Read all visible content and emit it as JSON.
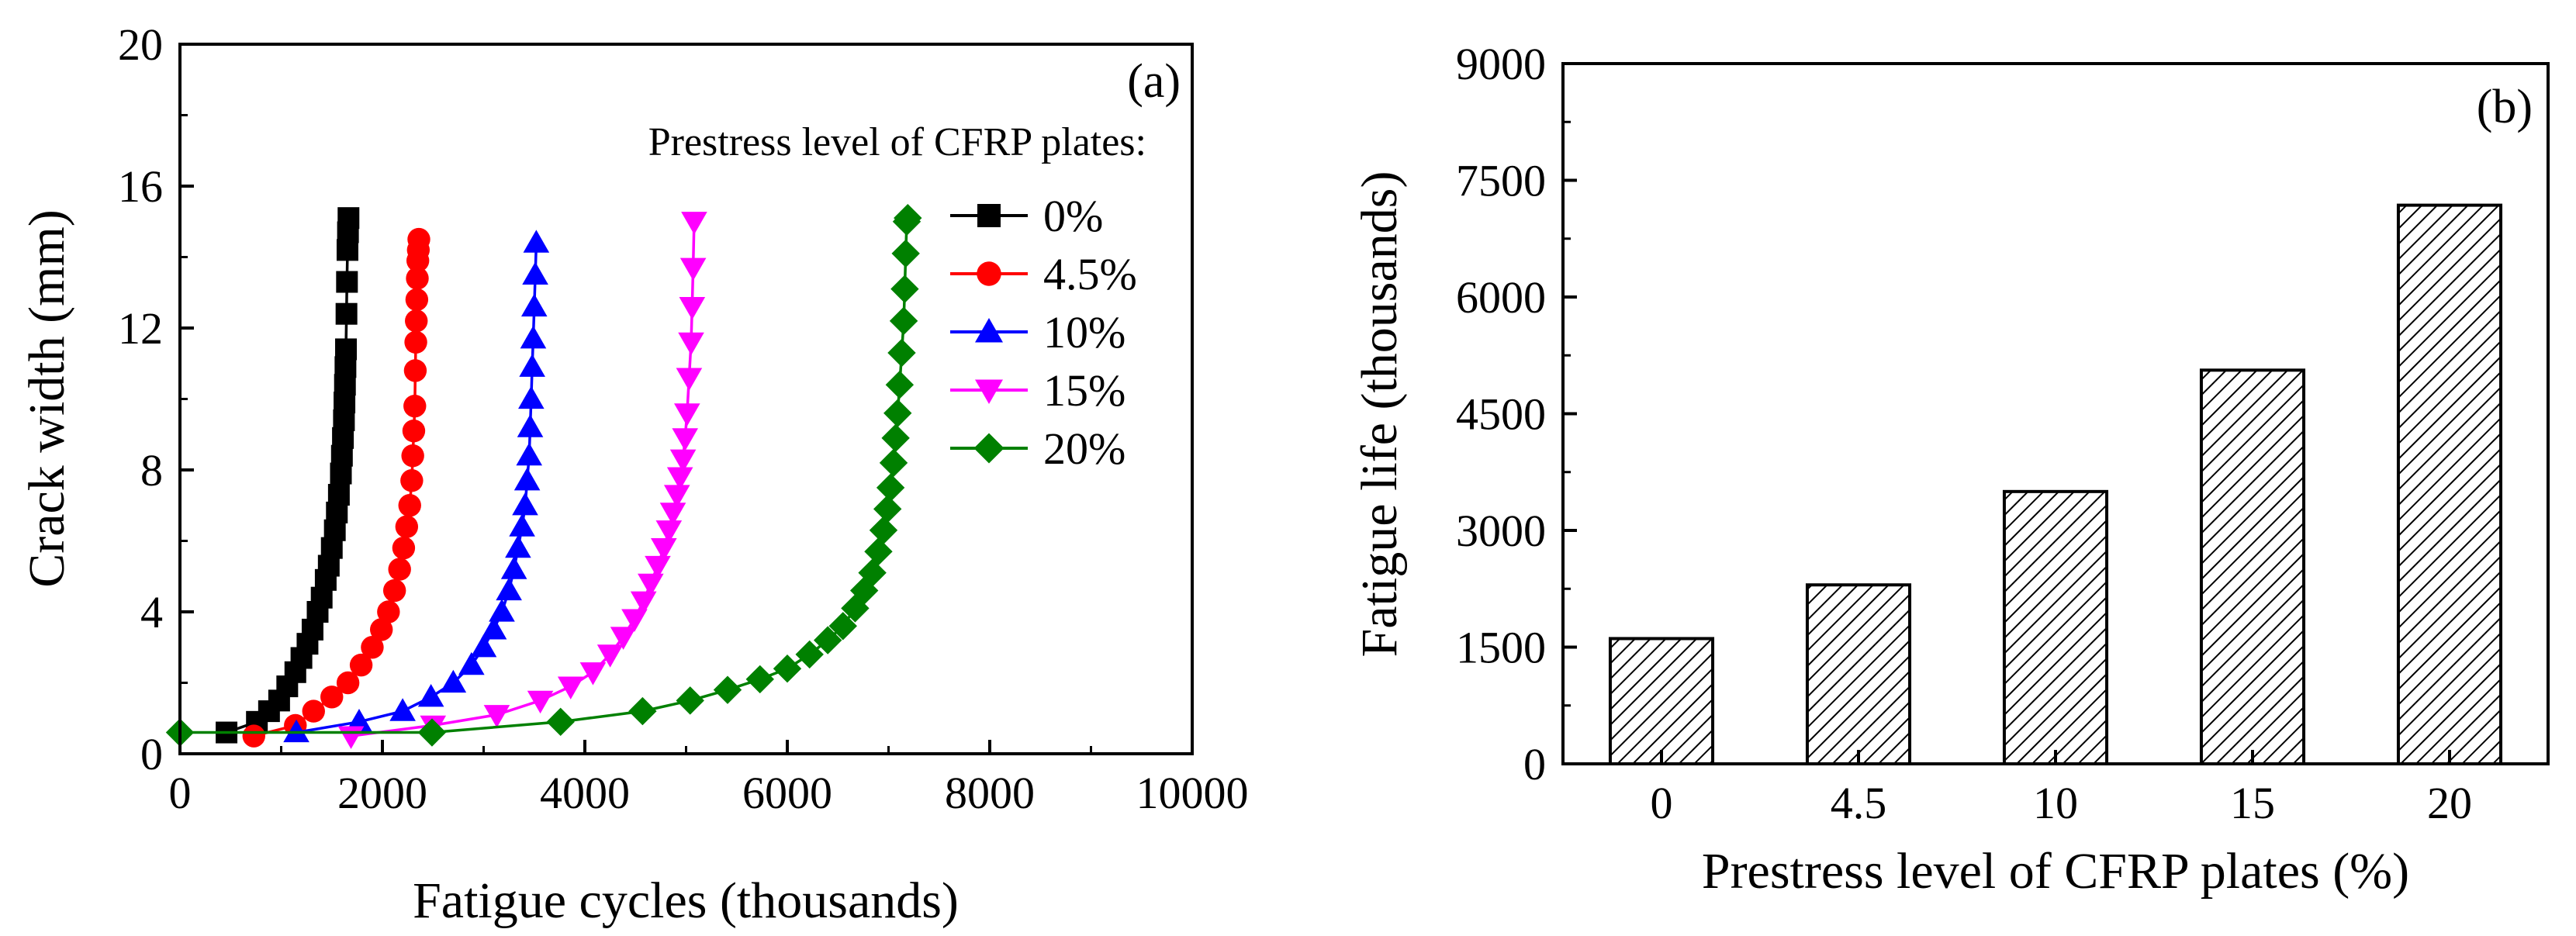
{
  "chart_data": [
    {
      "type": "line",
      "panel_label": "(a)",
      "xlabel": "Fatigue cycles (thousands)",
      "ylabel": "Crack width (mm)",
      "xlim": [
        0,
        10000
      ],
      "ylim": [
        0,
        20
      ],
      "xticks": [
        "0",
        "2000",
        "4000",
        "6000",
        "8000",
        "10000"
      ],
      "yticks": [
        "0",
        "4",
        "8",
        "12",
        "16",
        "20"
      ],
      "legend_title": "Prestress level of CFRP plates:",
      "legend_position": "top-right",
      "series": [
        {
          "name": "0%",
          "color": "#000000",
          "marker": "square",
          "x": [
            460,
            760,
            880,
            980,
            1060,
            1140,
            1200,
            1260,
            1310,
            1360,
            1400,
            1440,
            1470,
            1500,
            1530,
            1550,
            1570,
            1590,
            1600,
            1610,
            1620,
            1625,
            1630,
            1635,
            1640,
            1645,
            1650,
            1655,
            1660,
            1665
          ],
          "y": [
            0.6,
            0.9,
            1.2,
            1.5,
            1.9,
            2.3,
            2.7,
            3.1,
            3.5,
            4.0,
            4.4,
            4.9,
            5.3,
            5.8,
            6.3,
            6.8,
            7.3,
            7.9,
            8.4,
            8.9,
            9.4,
            9.9,
            10.4,
            10.9,
            11.4,
            12.4,
            13.3,
            14.2,
            14.7,
            15.1
          ]
        },
        {
          "name": "4.5%",
          "color": "#ff0000",
          "marker": "circle",
          "x": [
            730,
            1140,
            1320,
            1500,
            1660,
            1790,
            1900,
            1990,
            2060,
            2120,
            2170,
            2210,
            2240,
            2270,
            2290,
            2300,
            2310,
            2320,
            2325,
            2330,
            2335,
            2340,
            2345,
            2350,
            2355,
            2360
          ],
          "y": [
            0.5,
            0.8,
            1.2,
            1.6,
            2.0,
            2.5,
            3.0,
            3.5,
            4.0,
            4.6,
            5.2,
            5.8,
            6.4,
            7.0,
            7.7,
            8.4,
            9.1,
            9.8,
            10.8,
            11.6,
            12.2,
            12.8,
            13.4,
            13.9,
            14.2,
            14.5
          ]
        },
        {
          "name": "10%",
          "color": "#0000ff",
          "marker": "triangle-up",
          "x": [
            1150,
            1770,
            2200,
            2480,
            2700,
            2880,
            3000,
            3100,
            3180,
            3250,
            3300,
            3340,
            3380,
            3410,
            3430,
            3450,
            3460,
            3470,
            3480,
            3490,
            3500,
            3510,
            3520
          ],
          "y": [
            0.6,
            0.9,
            1.2,
            1.6,
            2.0,
            2.5,
            3.0,
            3.5,
            4.0,
            4.6,
            5.2,
            5.8,
            6.4,
            7.0,
            7.7,
            8.4,
            9.2,
            10.0,
            10.9,
            11.7,
            12.6,
            13.5,
            14.4
          ]
        },
        {
          "name": "15%",
          "color": "#ff00ff",
          "marker": "triangle-down",
          "x": [
            1690,
            2500,
            3130,
            3560,
            3860,
            4080,
            4250,
            4380,
            4490,
            4580,
            4650,
            4720,
            4780,
            4830,
            4870,
            4910,
            4940,
            4970,
            4990,
            5010,
            5030,
            5050,
            5060,
            5070,
            5080
          ],
          "y": [
            0.5,
            0.8,
            1.1,
            1.5,
            1.9,
            2.3,
            2.8,
            3.3,
            3.8,
            4.3,
            4.8,
            5.3,
            5.8,
            6.3,
            6.8,
            7.3,
            7.8,
            8.3,
            8.9,
            9.6,
            10.6,
            11.6,
            12.6,
            13.7,
            15.0
          ]
        },
        {
          "name": "20%",
          "color": "#008000",
          "marker": "diamond",
          "x": [
            0,
            2490,
            3760,
            4570,
            5040,
            5410,
            5730,
            6000,
            6220,
            6400,
            6550,
            6670,
            6760,
            6840,
            6900,
            6950,
            6990,
            7020,
            7050,
            7070,
            7090,
            7110,
            7130,
            7150,
            7160,
            7170,
            7180,
            7190
          ],
          "y": [
            0.6,
            0.6,
            0.9,
            1.2,
            1.5,
            1.8,
            2.1,
            2.4,
            2.8,
            3.2,
            3.6,
            4.1,
            4.6,
            5.1,
            5.7,
            6.3,
            6.9,
            7.5,
            8.2,
            8.9,
            9.6,
            10.4,
            11.3,
            12.2,
            13.1,
            14.1,
            15.0,
            15.1
          ]
        }
      ]
    },
    {
      "type": "bar",
      "panel_label": "(b)",
      "xlabel": "Prestress level of CFRP plates (%)",
      "ylabel": "Fatigue life (thousands)",
      "categories": [
        "0",
        "4.5",
        "10",
        "15",
        "20"
      ],
      "values": [
        1610,
        2300,
        3500,
        5060,
        7180
      ],
      "ylim": [
        0,
        9000
      ],
      "yticks": [
        "0",
        "1500",
        "3000",
        "4500",
        "6000",
        "7500",
        "9000"
      ],
      "bar_fill": "diagonal-hatch"
    }
  ]
}
